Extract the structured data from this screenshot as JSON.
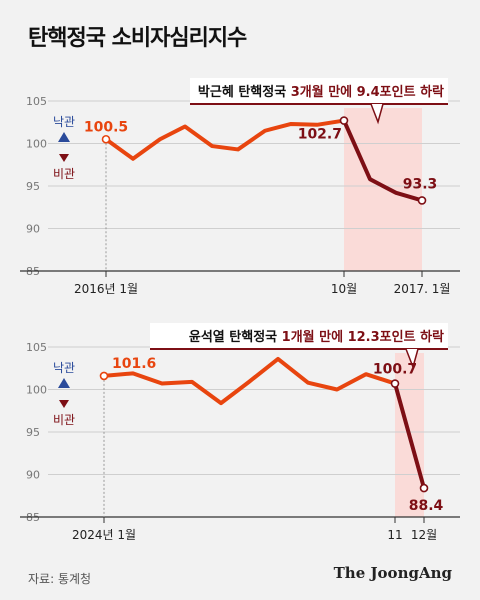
{
  "title": "탄핵정국 소비자심리지수",
  "source": "자료: 통계청",
  "brand": "The JoongAng",
  "colors": {
    "line": "#e8450f",
    "dark": "#7d0f15",
    "highlight": "#fadbd8",
    "up": "#2a4a9a",
    "down": "#7d0f15",
    "axis": "#333333",
    "grid": "#cfcfcf"
  },
  "legend": {
    "up_label": "낙관",
    "down_label": "비관",
    "up_icon": "triangle-up-icon",
    "down_icon": "triangle-down-icon"
  },
  "chart_data": [
    {
      "type": "line",
      "banner_segments": [
        {
          "text": "박근혜 탄핵정국 ",
          "color": "#111111"
        },
        {
          "text": "3개월 만에 ",
          "color": "#7d0f15"
        },
        {
          "text": "9.4포인트 하락",
          "color": "#7d0f15"
        }
      ],
      "ylim": [
        85,
        105
      ],
      "yticks": [
        105,
        100,
        95,
        90,
        85
      ],
      "x_tick_labels": [
        "2016년 1월",
        "10월",
        "2017. 1월"
      ],
      "values": [
        100.5,
        98.2,
        100.5,
        102.0,
        99.7,
        99.3,
        101.5,
        102.3,
        102.2,
        102.7,
        95.8,
        94.2,
        93.3
      ],
      "highlight_start_index": 9,
      "annotations": [
        {
          "label": "100.5",
          "index": 0
        },
        {
          "label": "102.7",
          "index": 9
        },
        {
          "label": "93.3",
          "index": 12
        }
      ]
    },
    {
      "type": "line",
      "banner_segments": [
        {
          "text": "윤석열 탄핵정국 ",
          "color": "#111111"
        },
        {
          "text": "1개월 만에 ",
          "color": "#7d0f15"
        },
        {
          "text": "12.3포인트 하락",
          "color": "#7d0f15"
        }
      ],
      "ylim": [
        85,
        105
      ],
      "yticks": [
        105,
        100,
        95,
        90,
        85
      ],
      "x_tick_labels": [
        "2024년 1월",
        "11",
        "12월"
      ],
      "values": [
        101.6,
        101.9,
        100.7,
        100.9,
        98.4,
        100.9,
        103.6,
        100.8,
        100.0,
        101.8,
        100.7,
        88.4
      ],
      "highlight_start_index": 10,
      "annotations": [
        {
          "label": "101.6",
          "index": 0
        },
        {
          "label": "100.7",
          "index": 10
        },
        {
          "label": "88.4",
          "index": 11
        }
      ]
    }
  ]
}
